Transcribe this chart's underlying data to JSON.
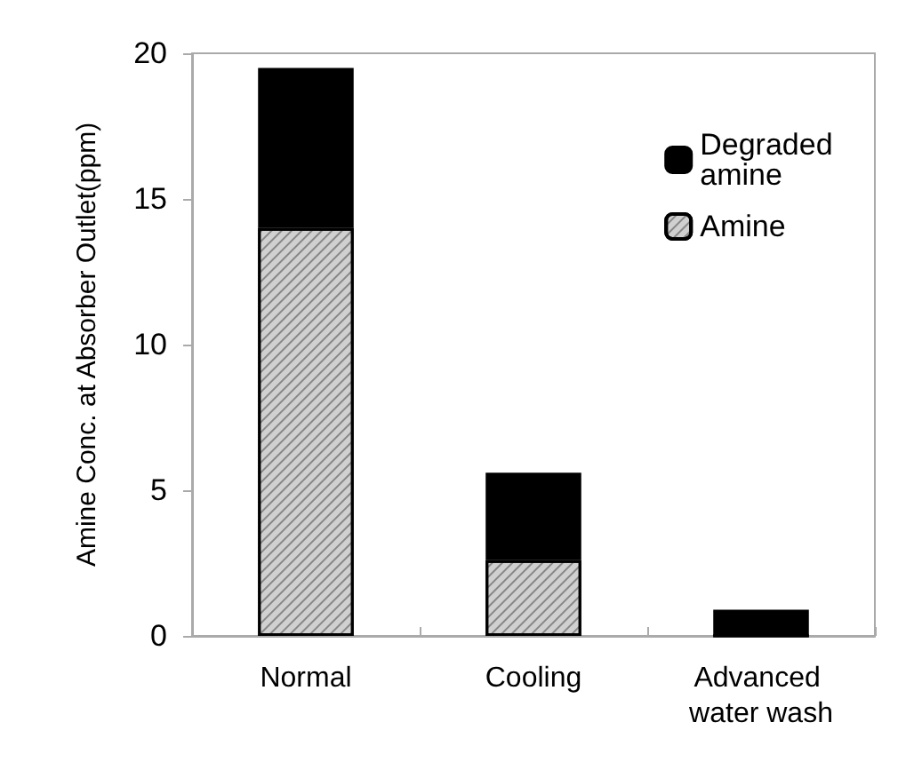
{
  "chart_data": {
    "type": "bar",
    "stacked": true,
    "ylabel": "Amine Conc. at Absorber Outlet(ppm)",
    "categories": [
      "Normal",
      "Cooling",
      "Advanced water wash"
    ],
    "series": [
      {
        "name": "Amine",
        "color": "#d0d0d0",
        "values": [
          14,
          2.6,
          0
        ]
      },
      {
        "name": "Degraded amine",
        "color": "#000000",
        "values": [
          5.5,
          3.0,
          0.9
        ]
      }
    ],
    "ylim": [
      0,
      20
    ],
    "yticks": [
      0,
      5,
      10,
      15,
      20
    ],
    "grid": false,
    "legend": "top right"
  }
}
